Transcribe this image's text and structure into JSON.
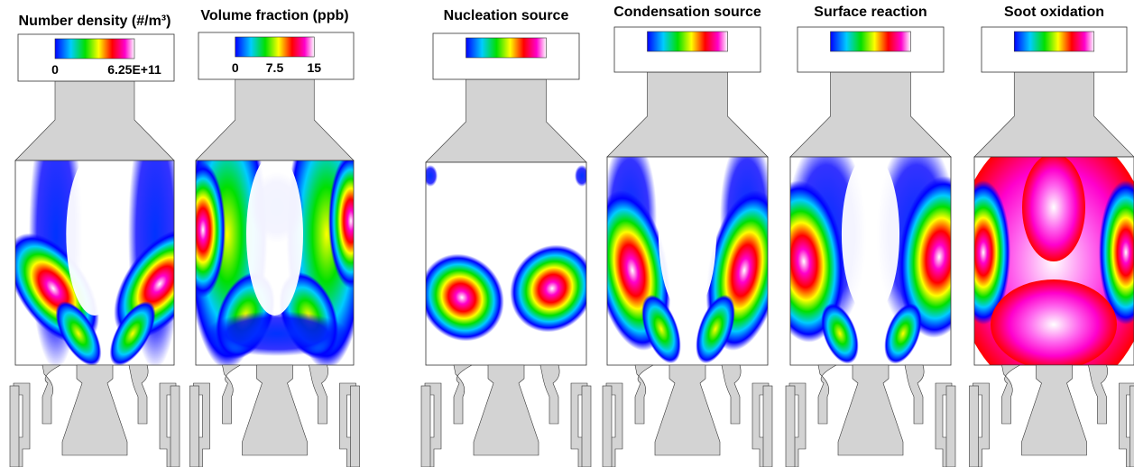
{
  "panels": [
    {
      "title": "Number density (#/m³)",
      "colorbar_labels": [
        "0",
        "6.25E+11"
      ]
    },
    {
      "title": "Volume fraction (ppb)",
      "colorbar_labels": [
        "0",
        "7.5",
        "15"
      ]
    },
    {
      "title": "Nucleation source"
    },
    {
      "title": "Condensation source"
    },
    {
      "title": "Surface reaction"
    },
    {
      "title": "Soot oxidation"
    }
  ]
}
